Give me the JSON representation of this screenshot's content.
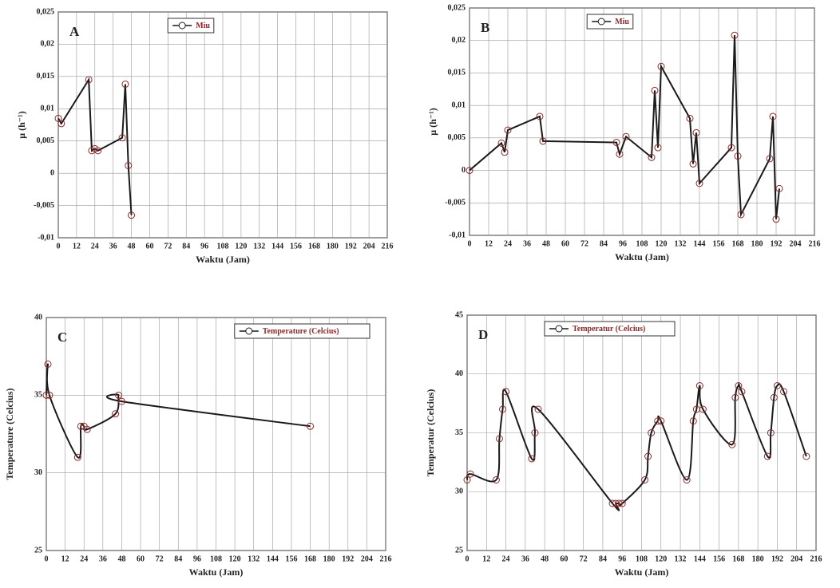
{
  "chart_data": [
    {
      "type": "line",
      "annotation": "A",
      "xlabel": "Waktu (Jam)",
      "ylabel": "μ (h⁻¹)",
      "x": [
        0,
        2,
        20,
        22,
        24,
        26,
        42,
        44,
        46,
        48
      ],
      "series": [
        {
          "name": "Miu",
          "color": "#1a1a1a",
          "marker_color": "#8b2a2a",
          "values": [
            0.0085,
            0.0077,
            0.0145,
            0.0035,
            0.0038,
            0.0035,
            0.0055,
            0.0138,
            0.0012,
            -0.0065
          ]
        }
      ],
      "smooth": false,
      "xlim": [
        0,
        216
      ],
      "xticks": [
        0,
        12,
        24,
        36,
        48,
        60,
        72,
        84,
        96,
        108,
        120,
        132,
        144,
        156,
        168,
        180,
        192,
        204,
        216
      ],
      "ylim": [
        -0.01,
        0.025
      ],
      "yticks": [
        {
          "value": -0.01,
          "label": "-0,01"
        },
        {
          "value": -0.005,
          "label": "-0,005"
        },
        0,
        {
          "value": 0.005,
          "label": "0,005"
        },
        {
          "value": 0.01,
          "label": "0,01"
        },
        {
          "value": 0.015,
          "label": "0,015"
        },
        {
          "value": 0.02,
          "label": "0,02"
        },
        {
          "value": 0.025,
          "label": "0,025"
        }
      ],
      "grid": true,
      "legend": "top"
    },
    {
      "type": "line",
      "annotation": "B",
      "xlabel": "Waktu (Jam)",
      "ylabel": "μ (h⁻¹)",
      "x": [
        0,
        20,
        22,
        24,
        44,
        46,
        92,
        94,
        98,
        114,
        116,
        118,
        120,
        138,
        140,
        142,
        144,
        164,
        166,
        168,
        170,
        188,
        190,
        192,
        194
      ],
      "series": [
        {
          "name": "Miu",
          "color": "#1a1a1a",
          "marker_color": "#8b2a2a",
          "values": [
            0,
            0.0042,
            0.0028,
            0.0062,
            0.0083,
            0.0045,
            0.0043,
            0.0025,
            0.0052,
            0.002,
            0.0123,
            0.0035,
            0.016,
            0.008,
            0.001,
            0.0058,
            -0.002,
            0.0035,
            0.0208,
            0.0022,
            -0.0068,
            0.0018,
            0.0083,
            -0.0075,
            -0.0028
          ]
        }
      ],
      "smooth": false,
      "xlim": [
        0,
        216
      ],
      "xticks": [
        0,
        12,
        24,
        36,
        48,
        60,
        72,
        84,
        96,
        108,
        120,
        132,
        144,
        156,
        168,
        180,
        192,
        204,
        216
      ],
      "ylim": [
        -0.01,
        0.025
      ],
      "yticks": [
        {
          "value": -0.01,
          "label": "-0,01"
        },
        {
          "value": -0.005,
          "label": "-0,005"
        },
        0,
        {
          "value": 0.005,
          "label": "0,005"
        },
        {
          "value": 0.01,
          "label": "0,01"
        },
        {
          "value": 0.015,
          "label": "0,015"
        },
        {
          "value": 0.02,
          "label": "0,02"
        },
        {
          "value": 0.025,
          "label": "0,025"
        }
      ],
      "grid": true,
      "legend": "top"
    },
    {
      "type": "line",
      "annotation": "C",
      "xlabel": "Waktu (Jam)",
      "ylabel": "Temperature (Celcius)",
      "x": [
        0,
        1,
        2,
        20,
        22,
        24,
        26,
        44,
        46,
        48,
        168
      ],
      "series": [
        {
          "name": "Temperature (Celcius)",
          "color": "#1a1a1a",
          "marker_color": "#8b2a2a",
          "values": [
            35,
            37,
            35,
            31,
            33,
            33,
            32.8,
            33.8,
            35,
            34.6,
            33
          ]
        }
      ],
      "smooth": true,
      "xlim": [
        0,
        216
      ],
      "xticks": [
        0,
        12,
        24,
        36,
        48,
        60,
        72,
        84,
        96,
        108,
        120,
        132,
        144,
        156,
        168,
        180,
        192,
        204,
        216
      ],
      "ylim": [
        25,
        40
      ],
      "yticks": [
        25,
        30,
        35,
        40
      ],
      "grid": true,
      "legend": "top-right"
    },
    {
      "type": "line",
      "annotation": "D",
      "xlabel": "Waktu (Jam)",
      "ylabel": "Temperatur (Celcius)",
      "x": [
        0,
        2,
        18,
        20,
        22,
        24,
        40,
        42,
        44,
        90,
        92,
        94,
        96,
        110,
        112,
        114,
        118,
        120,
        136,
        140,
        142,
        144,
        146,
        164,
        166,
        168,
        170,
        186,
        188,
        190,
        192,
        196,
        210
      ],
      "series": [
        {
          "name": "Temperatur (Celcius)",
          "color": "#1a1a1a",
          "marker_color": "#8b2a2a",
          "values": [
            31,
            31.5,
            31,
            34.5,
            37,
            38.5,
            32.8,
            35,
            37,
            29,
            29,
            29,
            29,
            31,
            33,
            35,
            36,
            36,
            31,
            36,
            37,
            39,
            37,
            34,
            38,
            39,
            38.5,
            33,
            35,
            38,
            39,
            38.5,
            33
          ]
        }
      ],
      "smooth": true,
      "xlim": [
        0,
        216
      ],
      "xticks": [
        0,
        12,
        24,
        36,
        48,
        60,
        72,
        84,
        96,
        108,
        120,
        132,
        144,
        156,
        168,
        180,
        192,
        204,
        216
      ],
      "ylim": [
        25,
        45
      ],
      "yticks": [
        25,
        30,
        35,
        40,
        45
      ],
      "grid": true,
      "legend": "top"
    }
  ]
}
